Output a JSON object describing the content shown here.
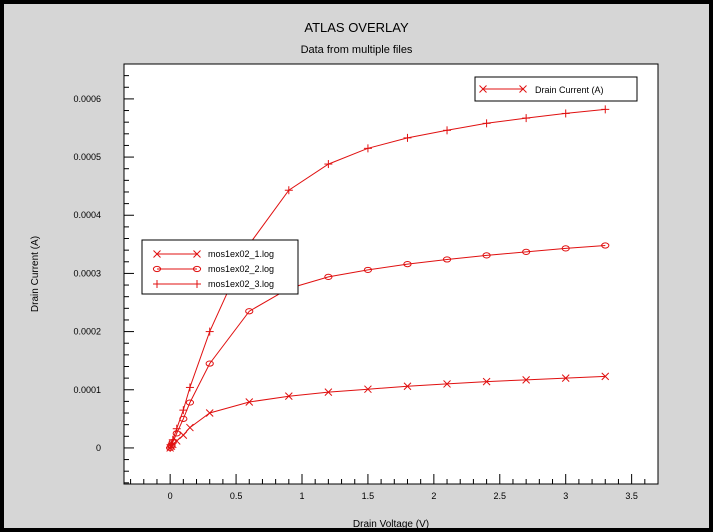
{
  "chart_data": {
    "type": "line",
    "title": "ATLAS OVERLAY",
    "subtitle": "Data from multiple files",
    "xlabel": "Drain Voltage (V)",
    "ylabel": "Drain Current (A)",
    "xlim": [
      -0.35,
      3.7
    ],
    "ylim": [
      -6.2e-05,
      0.00066
    ],
    "x_ticks": [
      "0",
      "0.5",
      "1",
      "1.5",
      "2",
      "2.5",
      "3",
      "3.5"
    ],
    "x_tick_values": [
      0,
      0.5,
      1,
      1.5,
      2,
      2.5,
      3,
      3.5
    ],
    "y_ticks": [
      "0",
      "0.0001",
      "0.0002",
      "0.0003",
      "0.0004",
      "0.0005",
      "0.0006"
    ],
    "y_tick_values": [
      0,
      0.0001,
      0.0002,
      0.0003,
      0.0004,
      0.0005,
      0.0006
    ],
    "top_legend": {
      "label": "Drain Current (A)",
      "placement": "top-right"
    },
    "series_legend_placement": "middle-left",
    "color": "#e01010",
    "series": [
      {
        "name": "mos1ex02_1.log",
        "marker": "x",
        "x": [
          0,
          0.01,
          0.02,
          0.05,
          0.1,
          0.15,
          0.3,
          0.6,
          0.9,
          1.2,
          1.5,
          1.8,
          2.1,
          2.4,
          2.7,
          3.0,
          3.3
        ],
        "y": [
          0,
          3e-06,
          6e-06,
          1.2e-05,
          2.2e-05,
          3.5e-05,
          6e-05,
          7.9e-05,
          8.9e-05,
          9.6e-05,
          0.000101,
          0.000106,
          0.00011,
          0.000114,
          0.000117,
          0.00012,
          0.000123
        ]
      },
      {
        "name": "mos1ex02_2.log",
        "marker": "o",
        "x": [
          0,
          0.01,
          0.02,
          0.05,
          0.1,
          0.15,
          0.3,
          0.6,
          0.9,
          1.2,
          1.5,
          1.8,
          2.1,
          2.4,
          2.7,
          3.0,
          3.3
        ],
        "y": [
          0,
          4e-06,
          1e-05,
          2.5e-05,
          5e-05,
          7.8e-05,
          0.000145,
          0.000235,
          0.000274,
          0.000294,
          0.000306,
          0.000316,
          0.000324,
          0.000331,
          0.000337,
          0.000343,
          0.000348
        ]
      },
      {
        "name": "mos1ex02_3.log",
        "marker": "+",
        "x": [
          0,
          0.01,
          0.02,
          0.05,
          0.1,
          0.15,
          0.3,
          0.6,
          0.9,
          1.2,
          1.5,
          1.8,
          2.1,
          2.4,
          2.7,
          3.0,
          3.3
        ],
        "y": [
          0,
          6e-06,
          1.4e-05,
          3.3e-05,
          6.5e-05,
          0.000104,
          0.0002,
          0.00035,
          0.000443,
          0.000488,
          0.000515,
          0.000533,
          0.000546,
          0.000558,
          0.000567,
          0.000575,
          0.000582
        ]
      }
    ]
  }
}
